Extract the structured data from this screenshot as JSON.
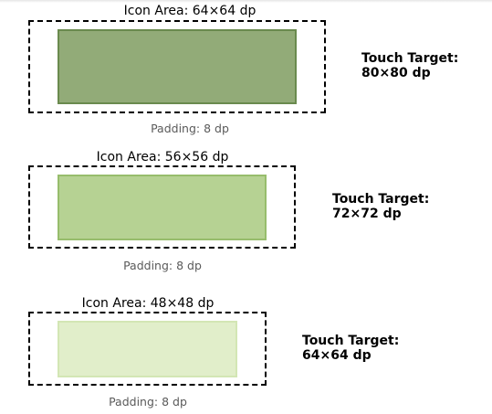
{
  "colors": {
    "row1_fill": "#92ab78",
    "row1_border": "#6a8a4e",
    "row2_fill": "#b6d293",
    "row2_border": "#97bd6c",
    "row3_fill": "#e1eeca",
    "row3_border": "#d3e6b4",
    "dashed_border": "#000000",
    "caption": "#5a5a5a"
  },
  "rows": [
    {
      "icon_label": "Icon Area: 64×64 dp",
      "padding_label": "Padding: 8 dp",
      "target_label_line1": "Touch Target:",
      "target_label_line2": "80×80 dp"
    },
    {
      "icon_label": "Icon Area: 56×56 dp",
      "padding_label": "Padding: 8 dp",
      "target_label_line1": "Touch Target:",
      "target_label_line2": "72×72 dp"
    },
    {
      "icon_label": "Icon Area: 48×48 dp",
      "padding_label": "Padding: 8 dp",
      "target_label_line1": "Touch Target:",
      "target_label_line2": "64×64 dp"
    }
  ]
}
